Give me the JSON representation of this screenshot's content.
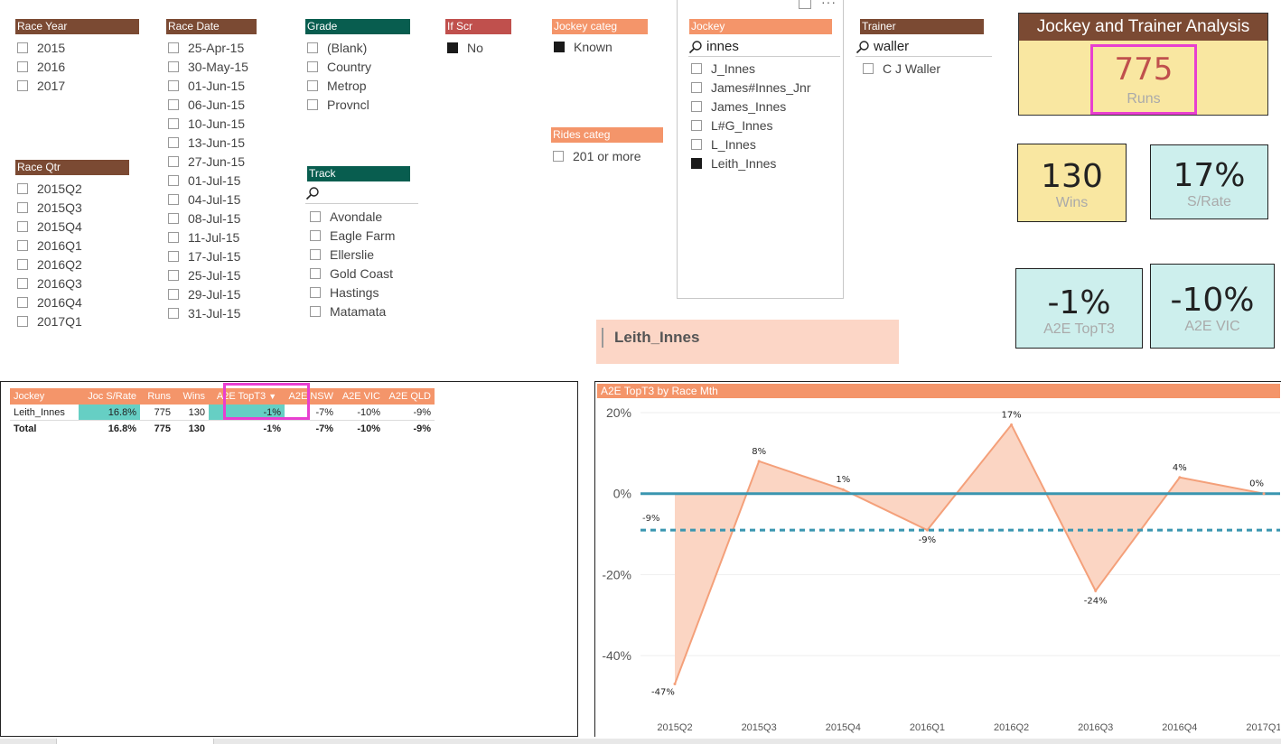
{
  "slicers": {
    "race_year": {
      "title": "Race Year",
      "items": [
        "2015",
        "2016",
        "2017"
      ]
    },
    "race_qtr": {
      "title": "Race Qtr",
      "items": [
        "2015Q2",
        "2015Q3",
        "2015Q4",
        "2016Q1",
        "2016Q2",
        "2016Q3",
        "2016Q4",
        "2017Q1"
      ]
    },
    "race_date": {
      "title": "Race Date",
      "items": [
        "25-Apr-15",
        "30-May-15",
        "01-Jun-15",
        "06-Jun-15",
        "10-Jun-15",
        "13-Jun-15",
        "27-Jun-15",
        "01-Jul-15",
        "04-Jul-15",
        "08-Jul-15",
        "11-Jul-15",
        "17-Jul-15",
        "25-Jul-15",
        "29-Jul-15",
        "31-Jul-15"
      ]
    },
    "grade": {
      "title": "Grade",
      "items": [
        "(Blank)",
        "Country",
        "Metrop",
        "Provncl"
      ]
    },
    "track": {
      "title": "Track",
      "items": [
        "Avondale",
        "Eagle Farm",
        "Ellerslie",
        "Gold Coast",
        "Hastings",
        "Matamata"
      ]
    },
    "if_scr": {
      "title": "If Scr",
      "items": [
        "No"
      ]
    },
    "jockey_categ": {
      "title": "Jockey categ",
      "items": [
        "Known"
      ]
    },
    "rides_categ": {
      "title": "Rides categ",
      "items": [
        "201 or more"
      ]
    },
    "jockey": {
      "title": "Jockey",
      "search": "innes",
      "items": [
        "J_Innes",
        "James#Innes_Jnr",
        "James_Innes",
        "L#G_Innes",
        "L_Innes",
        "Leith_Innes"
      ]
    },
    "trainer": {
      "title": "Trainer",
      "search": "waller",
      "items": [
        "C J Waller"
      ]
    }
  },
  "kpis": {
    "title": "Jockey and Trainer Analysis",
    "runs": {
      "value": "775",
      "label": "Runs"
    },
    "wins": {
      "value": "130",
      "label": "Wins"
    },
    "srate": {
      "value": "17%",
      "label": "S/Rate"
    },
    "a2e_top3": {
      "value": "-1%",
      "label": "A2E TopT3"
    },
    "a2e_vic": {
      "value": "-10%",
      "label": "A2E VIC"
    }
  },
  "selected_jockey": "Leith_Innes",
  "table": {
    "headers": [
      "Jockey",
      "Joc S/Rate",
      "Runs",
      "Wins",
      "A2E TopT3",
      "A2E NSW",
      "A2E VIC",
      "A2E QLD"
    ],
    "sort_icon": "sort-desc-icon",
    "row": [
      "Leith_Innes",
      "16.8%",
      "775",
      "130",
      "-1%",
      "-7%",
      "-10%",
      "-9%"
    ],
    "total": [
      "Total",
      "16.8%",
      "775",
      "130",
      "-1%",
      "-7%",
      "-10%",
      "-9%"
    ]
  },
  "chart_data": {
    "type": "area",
    "title": "A2E TopT3 by Race Mth",
    "categories": [
      "2015Q2",
      "2015Q3",
      "2015Q4",
      "2016Q1",
      "2016Q2",
      "2016Q3",
      "2016Q4",
      "2017Q1"
    ],
    "values": [
      -47,
      8,
      1,
      -9,
      17,
      -24,
      4,
      0
    ],
    "value_labels": [
      "-47%",
      "8%",
      "1%",
      "-9%",
      "17%",
      "-24%",
      "4%",
      "0%"
    ],
    "ylim": [
      -50,
      20
    ],
    "yticks": [
      20,
      0,
      -20,
      -40
    ],
    "ytick_labels": [
      "20%",
      "0%",
      "-20%",
      "-40%"
    ],
    "reference_lines": [
      {
        "value": 0,
        "style": "solid"
      },
      {
        "value": -9,
        "style": "dashed",
        "label": "-9%"
      }
    ],
    "colors": {
      "area": "#fbd5c3",
      "line": "#f4a07a",
      "ref": "#3a96b0"
    }
  },
  "colors": {
    "brown": "#7b4a33",
    "teal": "#085d4f",
    "red": "#c0504d",
    "orange": "#f4956a",
    "highlight": "#e83fd0",
    "kpi_yellow": "#f9e7a1",
    "kpi_blue": "#cdefed",
    "cell_teal": "#66cfc4"
  }
}
